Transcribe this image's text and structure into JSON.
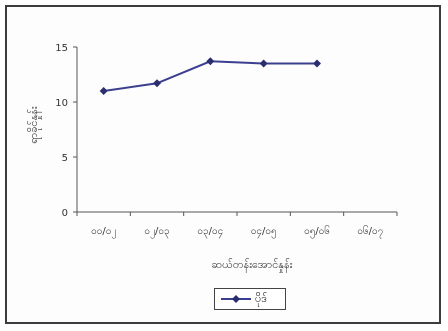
{
  "chart_data": {
    "type": "line",
    "title": "",
    "xlabel": "ဆယ်တန်းအောင်နှုန်း",
    "ylabel": "ရာခိုင်နှုန်း",
    "categories": [
      "၀၀/၀၂",
      "၀၂/၀၃",
      "၀၃/၀၄",
      "၀၄/၀၅",
      "၀၅/၀၆",
      "၀၆/၀၇"
    ],
    "yticks": [
      "0",
      "5",
      "10",
      "15"
    ],
    "ylim": [
      0,
      15
    ],
    "series": [
      {
        "name": "ပိုဒ်",
        "values": [
          11,
          11.7,
          13.7,
          13.5,
          13.5,
          null
        ],
        "color": "#3b3f8f"
      }
    ],
    "legend_position": "bottom",
    "grid": false
  }
}
